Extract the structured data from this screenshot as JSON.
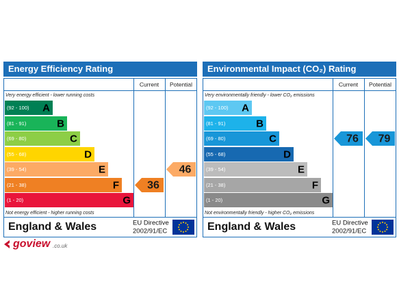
{
  "panels": [
    {
      "title": "Energy Efficiency Rating",
      "current_header": "Current",
      "potential_header": "Potential",
      "top_note": "Very energy efficient - lower running costs",
      "bottom_note": "Not energy efficient - higher running costs",
      "bands": [
        {
          "range": "(92 - 100)",
          "letter": "A",
          "color": "#008054"
        },
        {
          "range": "(81 - 91)",
          "letter": "B",
          "color": "#19b459"
        },
        {
          "range": "(69 - 80)",
          "letter": "C",
          "color": "#8dce46"
        },
        {
          "range": "(55 - 68)",
          "letter": "D",
          "color": "#ffd500"
        },
        {
          "range": "(39 - 54)",
          "letter": "E",
          "color": "#fcaa65"
        },
        {
          "range": "(21 - 38)",
          "letter": "F",
          "color": "#ef8023"
        },
        {
          "range": "(1 - 20)",
          "letter": "G",
          "color": "#e9153b"
        }
      ],
      "current": 36,
      "potential": 46,
      "region": "England & Wales",
      "directive_line1": "EU Directive",
      "directive_line2": "2002/91/EC"
    },
    {
      "title": "Environmental Impact (CO₂) Rating",
      "current_header": "Current",
      "potential_header": "Potential",
      "top_note": "Very environmentally friendly - lower CO₂ emissions",
      "bottom_note": "Not environmentally friendly - higher CO₂ emissions",
      "bands": [
        {
          "range": "(92 - 100)",
          "letter": "A",
          "color": "#5ec8f2"
        },
        {
          "range": "(81 - 91)",
          "letter": "B",
          "color": "#1db2ea"
        },
        {
          "range": "(69 - 80)",
          "letter": "C",
          "color": "#1896d8"
        },
        {
          "range": "(55 - 68)",
          "letter": "D",
          "color": "#1769b1"
        },
        {
          "range": "(39 - 54)",
          "letter": "E",
          "color": "#bcbcbc"
        },
        {
          "range": "(21 - 38)",
          "letter": "F",
          "color": "#a6a6a6"
        },
        {
          "range": "(1 - 20)",
          "letter": "G",
          "color": "#8a8a8a"
        }
      ],
      "current": 76,
      "potential": 79,
      "region": "England & Wales",
      "directive_line1": "EU Directive",
      "directive_line2": "2002/91/EC"
    }
  ],
  "logo": {
    "name": "goview",
    "suffix": ".co.uk"
  }
}
